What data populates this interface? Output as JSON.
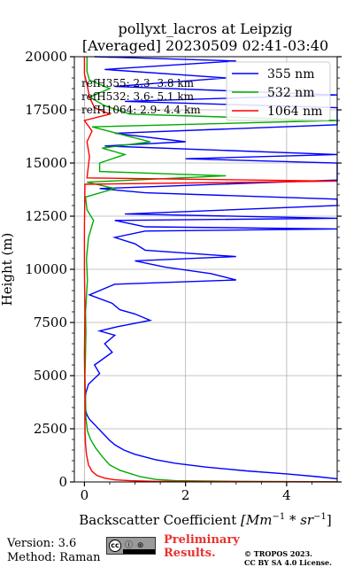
{
  "chart_data": {
    "type": "line",
    "title": [
      "pollyxt_lacros at Leipzig",
      "[Averaged] 20230509 02:41-03:40"
    ],
    "xlabel_prefix": "Backscatter Coefficient ",
    "xlabel_math": "[Mm",
    "xlabel_sup1": "−1",
    "xlabel_mid": " * sr",
    "xlabel_sup2": "−1",
    "xlabel_end": "]",
    "ylabel": "Height (m)",
    "xlim": [
      -0.2,
      5.0
    ],
    "ylim": [
      0,
      20000
    ],
    "xticks": [
      0,
      2,
      4
    ],
    "xtick_labels": [
      "0",
      "2",
      "4"
    ],
    "yticks": [
      0,
      2500,
      5000,
      7500,
      10000,
      12500,
      15000,
      17500,
      20000
    ],
    "ytick_labels": [
      "0",
      "2500",
      "5000",
      "7500",
      "10000",
      "12500",
      "15000",
      "17500",
      "20000"
    ],
    "grid": true,
    "legend_position": "top-right",
    "reference_heights": [
      "refH355:  2.3- 3.8 km",
      "refH532:  3.6- 5.1 km",
      "refH1064:  2.9- 4.4 km"
    ],
    "series": [
      {
        "name": "355 nm",
        "color": "#0000ff",
        "points": [
          [
            5.0,
            150
          ],
          [
            4.6,
            250
          ],
          [
            4.0,
            380
          ],
          [
            3.2,
            520
          ],
          [
            2.4,
            700
          ],
          [
            1.8,
            880
          ],
          [
            1.4,
            1050
          ],
          [
            1.0,
            1300
          ],
          [
            0.78,
            1500
          ],
          [
            0.6,
            1750
          ],
          [
            0.5,
            1950
          ],
          [
            0.42,
            2150
          ],
          [
            0.34,
            2350
          ],
          [
            0.26,
            2550
          ],
          [
            0.18,
            2750
          ],
          [
            0.1,
            2950
          ],
          [
            0.05,
            3150
          ],
          [
            0.02,
            3400
          ],
          [
            0.01,
            3800
          ],
          [
            0.03,
            4200
          ],
          [
            0.08,
            4600
          ],
          [
            0.3,
            5100
          ],
          [
            0.2,
            5500
          ],
          [
            0.55,
            6100
          ],
          [
            0.4,
            6500
          ],
          [
            0.6,
            6900
          ],
          [
            0.3,
            7100
          ],
          [
            0.65,
            7300
          ],
          [
            1.3,
            7600
          ],
          [
            1.0,
            7900
          ],
          [
            0.7,
            8100
          ],
          [
            0.55,
            8400
          ],
          [
            0.1,
            8800
          ],
          [
            0.6,
            9300
          ],
          [
            3.0,
            9500
          ],
          [
            2.5,
            9800
          ],
          [
            1.6,
            10100
          ],
          [
            1.0,
            10400
          ],
          [
            3.0,
            10600
          ],
          [
            1.2,
            10900
          ],
          [
            1.0,
            11200
          ],
          [
            0.6,
            11500
          ],
          [
            1.2,
            11800
          ],
          [
            5.0,
            11900
          ],
          [
            1.2,
            12000
          ],
          [
            0.6,
            12300
          ],
          [
            5.0,
            12400
          ],
          [
            0.8,
            12600
          ],
          [
            5.0,
            13000
          ],
          [
            5.0,
            13300
          ],
          [
            1.2,
            13600
          ],
          [
            0.3,
            13800
          ],
          [
            5.0,
            14200
          ],
          [
            5.0,
            14500
          ],
          [
            5.0,
            15000
          ],
          [
            2.0,
            15200
          ],
          [
            5.0,
            15400
          ],
          [
            0.4,
            15800
          ],
          [
            2.0,
            16000
          ],
          [
            0.6,
            16400
          ],
          [
            5.0,
            16800
          ],
          [
            5.0,
            17300
          ],
          [
            5.0,
            17600
          ],
          [
            0.8,
            17900
          ],
          [
            5.0,
            18200
          ],
          [
            0.6,
            18600
          ],
          [
            2.8,
            19000
          ],
          [
            0.4,
            19400
          ],
          [
            3.0,
            19800
          ],
          [
            0.2,
            20000
          ]
        ]
      },
      {
        "name": "532 nm",
        "color": "#00aa00",
        "points": [
          [
            5.0,
            10
          ],
          [
            3.0,
            30
          ],
          [
            1.8,
            60
          ],
          [
            1.4,
            120
          ],
          [
            1.1,
            250
          ],
          [
            0.9,
            400
          ],
          [
            0.7,
            550
          ],
          [
            0.5,
            800
          ],
          [
            0.35,
            1200
          ],
          [
            0.22,
            1600
          ],
          [
            0.12,
            2000
          ],
          [
            0.06,
            2400
          ],
          [
            0.03,
            3000
          ],
          [
            0.02,
            4000
          ],
          [
            0.01,
            5000
          ],
          [
            0.02,
            6000
          ],
          [
            0.03,
            7000
          ],
          [
            0.02,
            8000
          ],
          [
            0.06,
            9500
          ],
          [
            0.04,
            10500
          ],
          [
            0.08,
            11500
          ],
          [
            0.18,
            12300
          ],
          [
            0.05,
            12800
          ],
          [
            0.02,
            13400
          ],
          [
            0.6,
            13800
          ],
          [
            0.05,
            14100
          ],
          [
            2.8,
            14400
          ],
          [
            0.3,
            14600
          ],
          [
            0.3,
            15000
          ],
          [
            0.8,
            15400
          ],
          [
            0.35,
            15700
          ],
          [
            1.3,
            16000
          ],
          [
            0.8,
            16300
          ],
          [
            0.15,
            16700
          ],
          [
            5.0,
            17000
          ],
          [
            0.9,
            17300
          ],
          [
            0.4,
            17700
          ],
          [
            0.1,
            18100
          ],
          [
            0.5,
            18500
          ],
          [
            0.1,
            18900
          ],
          [
            0.05,
            19300
          ],
          [
            0.05,
            20000
          ]
        ]
      },
      {
        "name": "1064 nm",
        "color": "#ff0000",
        "points": [
          [
            5.0,
            5
          ],
          [
            2.6,
            15
          ],
          [
            1.4,
            30
          ],
          [
            0.9,
            60
          ],
          [
            0.6,
            100
          ],
          [
            0.4,
            180
          ],
          [
            0.25,
            300
          ],
          [
            0.15,
            500
          ],
          [
            0.08,
            800
          ],
          [
            0.04,
            1300
          ],
          [
            0.02,
            1800
          ],
          [
            0.01,
            2500
          ],
          [
            0.01,
            4000
          ],
          [
            0.0,
            6000
          ],
          [
            0.01,
            8000
          ],
          [
            0.0,
            10000
          ],
          [
            0.0,
            12000
          ],
          [
            0.01,
            14000
          ],
          [
            5.0,
            14150
          ],
          [
            0.05,
            14300
          ],
          [
            0.1,
            15300
          ],
          [
            0.05,
            16000
          ],
          [
            0.15,
            16500
          ],
          [
            0.0,
            17000
          ],
          [
            0.5,
            17300
          ],
          [
            0.2,
            17600
          ],
          [
            0.1,
            18100
          ],
          [
            0.06,
            18600
          ],
          [
            0.0,
            19200
          ],
          [
            0.0,
            20000
          ]
        ]
      }
    ]
  },
  "footer": {
    "version": "Version: 3.6",
    "method": "Method: Raman",
    "preliminary_line1": "Preliminary",
    "preliminary_line2": "Results.",
    "copyright_line1": "© TROPOS 2023.",
    "copyright_line2": "CC BY SA 4.0 License.",
    "license_badge_letters": "cc",
    "license_badge_icons": "ⓘ ⊛",
    "license_badge_text": "BY SA"
  }
}
